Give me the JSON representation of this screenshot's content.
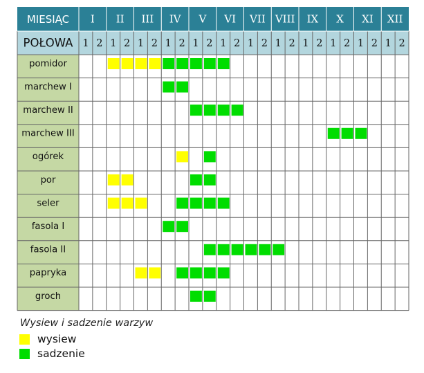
{
  "chart_data": {
    "type": "table",
    "header": {
      "month_label": "MIESIĄC",
      "half_label": "POŁOWA",
      "months": [
        "I",
        "II",
        "III",
        "IV",
        "V",
        "VI",
        "VII",
        "VIII",
        "IX",
        "X",
        "XI",
        "XII"
      ],
      "halves": [
        "1",
        "2"
      ]
    },
    "rows": [
      {
        "name": "pomidor",
        "cells": [
          [
            3,
            "wysiew"
          ],
          [
            4,
            "wysiew"
          ],
          [
            5,
            "wysiew"
          ],
          [
            6,
            "wysiew"
          ],
          [
            7,
            "sadzenie"
          ],
          [
            8,
            "sadzenie"
          ],
          [
            9,
            "sadzenie"
          ],
          [
            10,
            "sadzenie"
          ],
          [
            11,
            "sadzenie"
          ]
        ]
      },
      {
        "name": "marchew I",
        "cells": [
          [
            7,
            "sadzenie"
          ],
          [
            8,
            "sadzenie"
          ]
        ]
      },
      {
        "name": "marchew II",
        "cells": [
          [
            9,
            "sadzenie"
          ],
          [
            10,
            "sadzenie"
          ],
          [
            11,
            "sadzenie"
          ],
          [
            12,
            "sadzenie"
          ]
        ]
      },
      {
        "name": "marchew III",
        "cells": [
          [
            19,
            "sadzenie"
          ],
          [
            20,
            "sadzenie"
          ],
          [
            21,
            "sadzenie"
          ]
        ]
      },
      {
        "name": "ogórek",
        "cells": [
          [
            8,
            "wysiew"
          ],
          [
            10,
            "sadzenie"
          ]
        ]
      },
      {
        "name": "por",
        "cells": [
          [
            3,
            "wysiew"
          ],
          [
            4,
            "wysiew"
          ],
          [
            9,
            "sadzenie"
          ],
          [
            10,
            "sadzenie"
          ]
        ]
      },
      {
        "name": "seler",
        "cells": [
          [
            3,
            "wysiew"
          ],
          [
            4,
            "wysiew"
          ],
          [
            5,
            "wysiew"
          ],
          [
            8,
            "sadzenie"
          ],
          [
            9,
            "sadzenie"
          ],
          [
            10,
            "sadzenie"
          ],
          [
            11,
            "sadzenie"
          ]
        ]
      },
      {
        "name": "fasola I",
        "cells": [
          [
            7,
            "sadzenie"
          ],
          [
            8,
            "sadzenie"
          ]
        ]
      },
      {
        "name": "fasola II",
        "cells": [
          [
            10,
            "sadzenie"
          ],
          [
            11,
            "sadzenie"
          ],
          [
            12,
            "sadzenie"
          ],
          [
            13,
            "sadzenie"
          ],
          [
            14,
            "sadzenie"
          ],
          [
            15,
            "sadzenie"
          ]
        ]
      },
      {
        "name": "papryka",
        "cells": [
          [
            5,
            "wysiew"
          ],
          [
            6,
            "wysiew"
          ],
          [
            8,
            "sadzenie"
          ],
          [
            9,
            "sadzenie"
          ],
          [
            10,
            "sadzenie"
          ],
          [
            11,
            "sadzenie"
          ]
        ]
      },
      {
        "name": "groch",
        "cells": [
          [
            9,
            "sadzenie"
          ],
          [
            10,
            "sadzenie"
          ]
        ]
      }
    ],
    "legend": {
      "title": "Wysiew i sadzenie warzyw",
      "items": [
        {
          "key": "wysiew",
          "label": "wysiew",
          "color": "#ffff00"
        },
        {
          "key": "sadzenie",
          "label": "sadzenie",
          "color": "#00dd00"
        }
      ]
    }
  },
  "colors": {
    "header_bg": "#2b8096",
    "header_sub_bg": "#b3d6de",
    "label_bg": "#c5d8a4",
    "grid_line": "#666666",
    "header_divider": "#ffffff"
  }
}
